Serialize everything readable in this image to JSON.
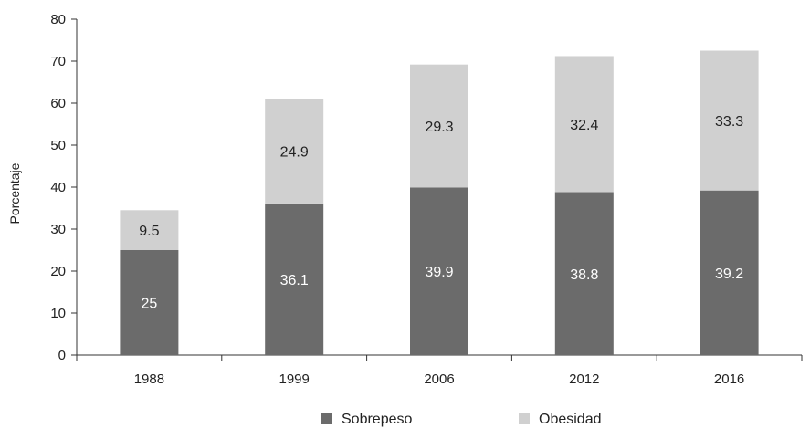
{
  "chart_data": {
    "type": "bar",
    "stacked": true,
    "categories": [
      "1988",
      "1999",
      "2006",
      "2012",
      "2016"
    ],
    "series": [
      {
        "name": "Sobrepeso",
        "values": [
          25,
          36.1,
          39.9,
          38.8,
          39.2
        ],
        "labels": [
          "25",
          "36.1",
          "39.9",
          "38.8",
          "39.2"
        ],
        "color": "#6b6b6b"
      },
      {
        "name": "Obesidad",
        "values": [
          9.5,
          24.9,
          29.3,
          32.4,
          33.3
        ],
        "labels": [
          "9.5",
          "24.9",
          "29.3",
          "32.4",
          "33.3"
        ],
        "color": "#d0d0d0"
      }
    ],
    "ylabel": "Porcentaje",
    "xlabel": "",
    "ylim": [
      0,
      80
    ],
    "yticks": [
      "0",
      "10",
      "20",
      "30",
      "40",
      "50",
      "60",
      "70",
      "80"
    ],
    "grid": false,
    "legend_position": "bottom"
  }
}
